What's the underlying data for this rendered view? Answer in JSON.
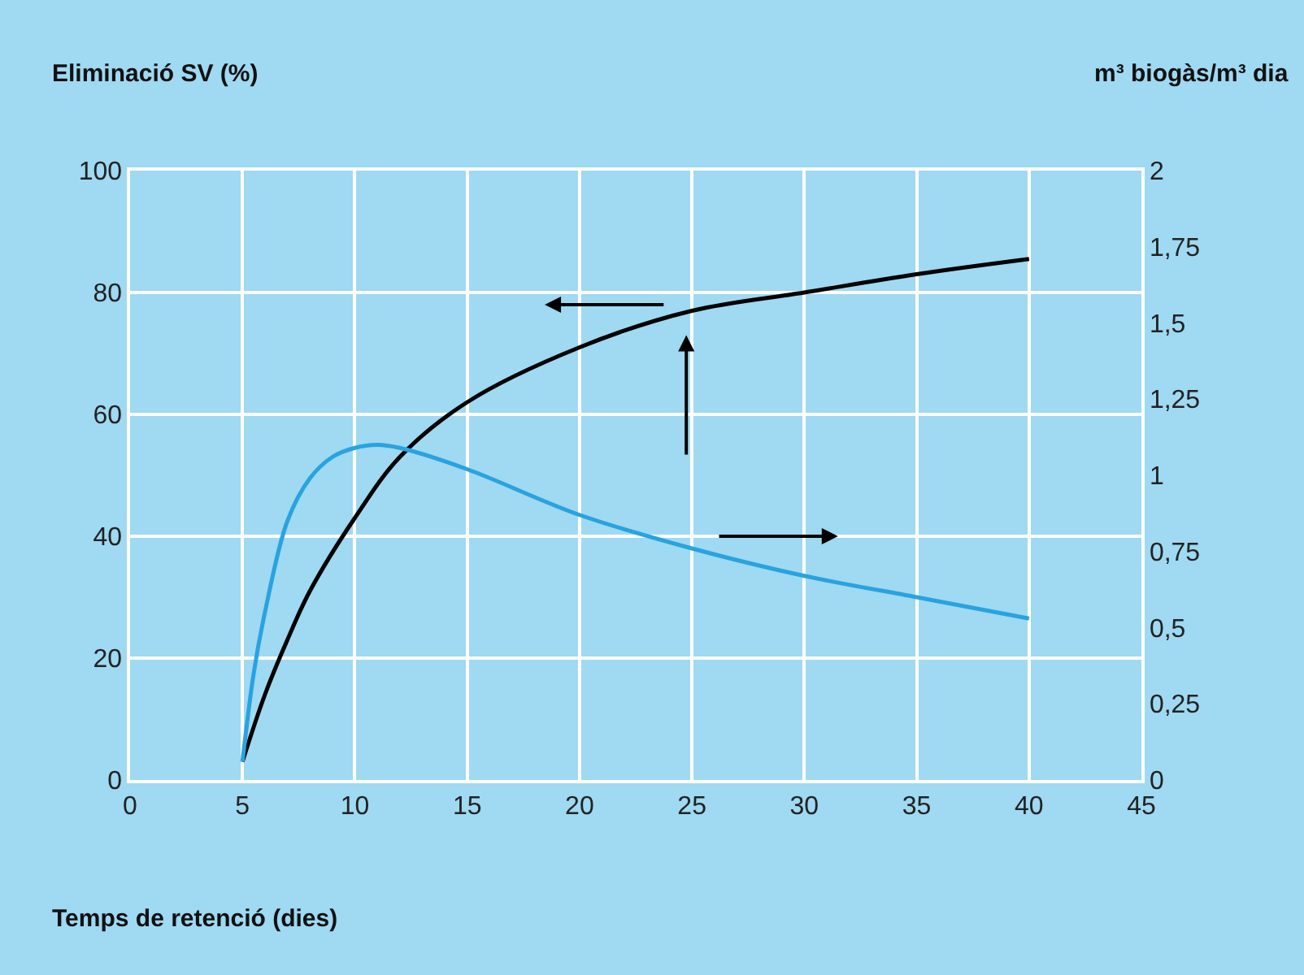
{
  "chart_data": {
    "type": "line",
    "xlabel": "Temps de retenció (dies)",
    "ylabel": "Eliminació SV (%)",
    "y2label": "m³ biogàs/m³ dia",
    "xlim": [
      0,
      45
    ],
    "xticks": [
      0,
      5,
      10,
      15,
      20,
      25,
      30,
      35,
      40,
      45
    ],
    "ylim": [
      0,
      100
    ],
    "yticks": [
      0,
      20,
      40,
      60,
      80,
      100
    ],
    "y2lim": [
      0,
      2
    ],
    "y2ticks": [
      0,
      {
        "value": 0.25,
        "label": "0,25"
      },
      {
        "value": 0.5,
        "label": "0,5"
      },
      {
        "value": 0.75,
        "label": "0,75"
      },
      1,
      {
        "value": 1.25,
        "label": "1,25"
      },
      {
        "value": 1.5,
        "label": "1,5"
      },
      {
        "value": 1.75,
        "label": "1,75"
      },
      2
    ],
    "grid": true,
    "marker": "none",
    "line_style": "solid",
    "series": [
      {
        "color": "#000000",
        "x": [
          5,
          6,
          7,
          8,
          10,
          12,
          15,
          20,
          25,
          30,
          35,
          40
        ],
        "values": [
          3,
          14,
          23,
          31,
          43,
          53,
          62,
          71,
          77,
          80,
          83,
          85.5
        ]
      },
      {
        "color": "#29a3e0",
        "axis": "y2",
        "x": [
          5,
          5.5,
          6,
          7,
          8,
          9,
          10,
          11,
          12,
          15,
          20,
          25,
          30,
          35,
          40
        ],
        "values": [
          0.06,
          0.35,
          0.55,
          0.85,
          0.99,
          1.06,
          1.09,
          1.1,
          1.09,
          1.02,
          0.87,
          0.76,
          0.67,
          0.6,
          0.53
        ]
      }
    ]
  }
}
